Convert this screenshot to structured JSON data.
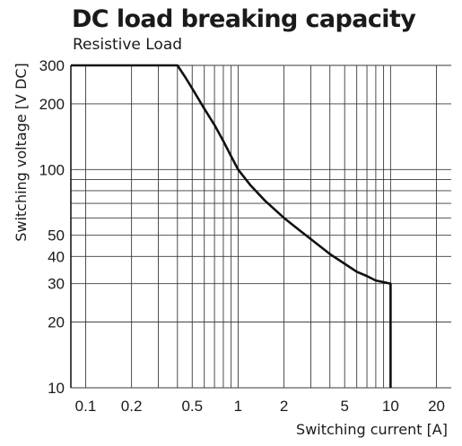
{
  "chart_data": {
    "type": "line",
    "title": "DC load breaking capacity",
    "subtitle": "Resistive Load",
    "xlabel": "Switching current [A]",
    "ylabel": "Switching voltage [V DC]",
    "x_scale": "log",
    "y_scale": "log",
    "xlim": [
      0.08,
      25
    ],
    "ylim": [
      10,
      300
    ],
    "x_ticks": [
      0.1,
      0.2,
      0.5,
      1,
      2,
      5,
      10,
      20
    ],
    "x_tick_labels": [
      "0.1",
      "0.2",
      "0.5",
      "1",
      "2",
      "5",
      "10",
      "20"
    ],
    "y_ticks": [
      10,
      20,
      30,
      40,
      50,
      100,
      200,
      300
    ],
    "y_tick_labels": [
      "10",
      "20",
      "30",
      "40",
      "50",
      "100",
      "200",
      "300"
    ],
    "x_grid": [
      0.1,
      0.2,
      0.3,
      0.4,
      0.5,
      0.6,
      0.7,
      0.8,
      0.9,
      1,
      2,
      3,
      4,
      5,
      6,
      7,
      8,
      9,
      10,
      20
    ],
    "y_grid": [
      10,
      20,
      30,
      40,
      50,
      60,
      70,
      80,
      90,
      100,
      200,
      300
    ],
    "grid": true,
    "series": [
      {
        "x": [
          0.08,
          0.4,
          0.45,
          0.5,
          0.6,
          0.7,
          0.8,
          0.9,
          1,
          1.2,
          1.5,
          2,
          2.5,
          3,
          4,
          5,
          6,
          7,
          8,
          9,
          10,
          10,
          10
        ],
        "y": [
          300,
          300,
          265,
          235,
          190,
          160,
          135,
          115,
          100,
          85,
          72,
          60,
          53,
          48,
          41,
          37,
          34,
          32.5,
          31,
          30.5,
          30,
          20,
          10
        ]
      }
    ]
  }
}
